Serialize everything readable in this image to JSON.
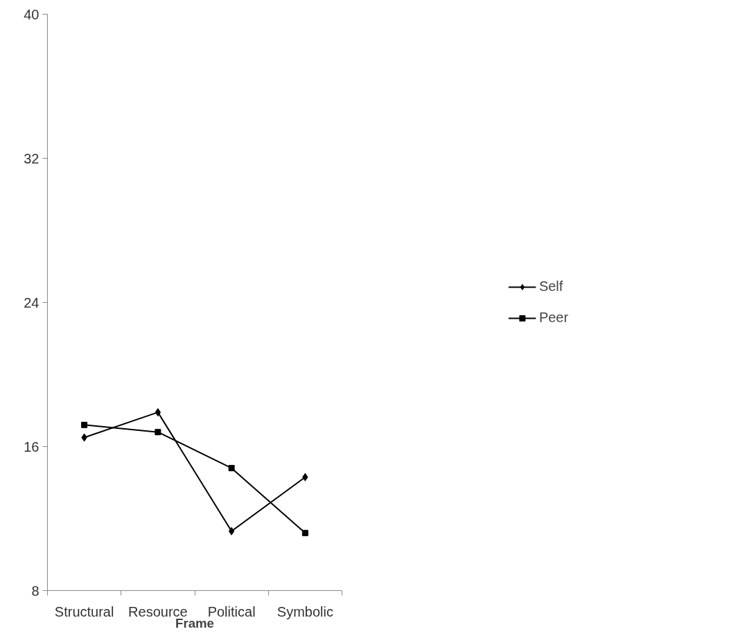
{
  "chart_data": {
    "type": "line",
    "xlabel": "Frame",
    "categories": [
      "Structural",
      "Resource",
      "Political",
      "Symbolic"
    ],
    "series": [
      {
        "name": "Self",
        "color": "#000000",
        "marker": "diamond",
        "values": [
          16.5,
          17.9,
          11.3,
          14.3
        ]
      },
      {
        "name": "Peer",
        "color": "#000000",
        "marker": "square",
        "values": [
          17.2,
          16.8,
          14.8,
          11.2
        ]
      }
    ],
    "ylim": [
      8,
      40
    ],
    "yticks": [
      8,
      16,
      24,
      32,
      40
    ],
    "grid": false,
    "legend": "right",
    "line_style": "solid"
  }
}
